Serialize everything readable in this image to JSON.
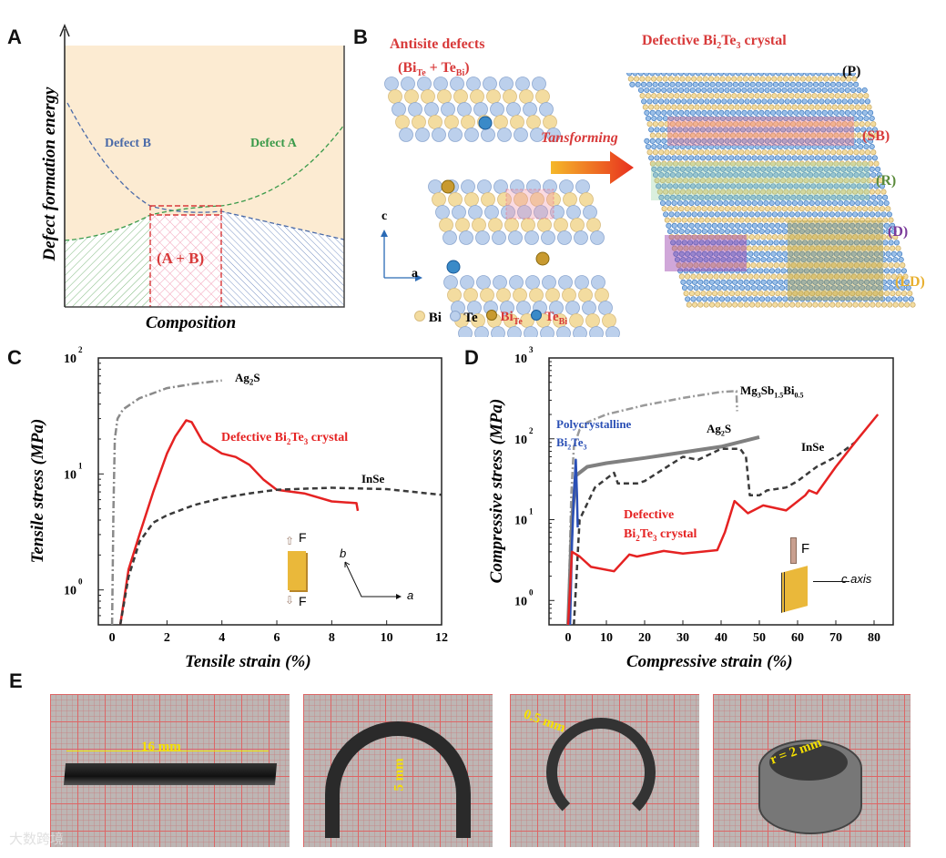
{
  "panels": {
    "a": "A",
    "b": "B",
    "c": "C",
    "d": "D",
    "e": "E"
  },
  "panel_a": {
    "ylabel": "Defect formation energy",
    "xlabel": "Composition",
    "defect_b": "Defect B",
    "defect_a": "Defect A",
    "overlap": "(A + B)"
  },
  "panel_b": {
    "left_title": "Antisite defects",
    "left_formula": {
      "a": "Bi",
      "a_sub": "Te",
      "plus": " + ",
      "b": "Te",
      "b_sub": "Bi"
    },
    "right_title": {
      "pre": "Defective Bi",
      "s1": "2",
      "mid": "Te",
      "s2": "3",
      "post": " crystal"
    },
    "arrow_label": "Tansforming",
    "axis_c": "c",
    "axis_a": "a",
    "regions": [
      "(P)",
      "(SB)",
      "(R)",
      "(D)",
      "(LD)"
    ],
    "legend": [
      {
        "label": "Bi",
        "sub": ""
      },
      {
        "label": "Te",
        "sub": ""
      },
      {
        "label": "Bi",
        "sub": "Te"
      },
      {
        "label": "Te",
        "sub": "Bi"
      }
    ]
  },
  "chart_data": [
    {
      "type": "line",
      "panel": "C",
      "xlabel": "Tensile strain (%)",
      "ylabel": "Tensile stress (MPa)",
      "yscale": "log",
      "xlim": [
        -0.5,
        12
      ],
      "ylim": [
        0.5,
        100
      ],
      "xticks": [
        0,
        2,
        4,
        6,
        8,
        10,
        12
      ],
      "yticks": [
        "10^0",
        "10^1",
        "10^2"
      ],
      "series": [
        {
          "name": "Ag2S",
          "label": "Ag",
          "label_sub": "2",
          "label_post": "S",
          "color": "#8a8a8a",
          "dash": "dashdot",
          "x": [
            0,
            0.05,
            0.1,
            0.2,
            0.4,
            1,
            2,
            3,
            4
          ],
          "y": [
            0.5,
            5,
            20,
            30,
            36,
            45,
            55,
            60,
            64
          ]
        },
        {
          "name": "Defective Bi2Te3 crystal",
          "label": "Defective Bi",
          "label_sub": "2",
          "label_post": "Te3 crystal",
          "color": "#e52222",
          "dash": "solid",
          "x": [
            0.3,
            0.6,
            1,
            1.5,
            2,
            2.3,
            2.7,
            2.9,
            3.3,
            4,
            4.5,
            5,
            5.5,
            6,
            7,
            8,
            8.9,
            8.95
          ],
          "y": [
            0.5,
            1.5,
            3,
            7,
            15,
            21,
            29,
            28,
            19,
            15,
            14,
            12,
            9,
            7.3,
            6.8,
            5.8,
            5.6,
            4.8
          ]
        },
        {
          "name": "InSe",
          "label": "InSe",
          "color": "#3a3a3a",
          "dash": "dashed",
          "x": [
            0.3,
            0.6,
            1,
            1.5,
            2,
            3,
            4,
            5,
            6,
            8,
            10,
            12
          ],
          "y": [
            0.5,
            1.3,
            2.6,
            3.8,
            4.4,
            5.4,
            6.2,
            6.8,
            7.3,
            7.6,
            7.4,
            6.6
          ]
        }
      ],
      "inset": {
        "force": "F",
        "axis_b": "b",
        "axis_a": "a"
      }
    },
    {
      "type": "line",
      "panel": "D",
      "xlabel": "Compressive strain (%)",
      "ylabel": "Compressive stress (MPa)",
      "yscale": "log",
      "xlim": [
        -5,
        85
      ],
      "ylim": [
        0.5,
        1000
      ],
      "xticks": [
        0,
        10,
        20,
        30,
        40,
        50,
        60,
        70,
        80
      ],
      "yticks": [
        "10^0",
        "10^1",
        "10^2",
        "10^3"
      ],
      "series": [
        {
          "name": "Mg3Sb1.5Bi0.5",
          "color": "#9a9a9a",
          "dash": "dashdot",
          "x": [
            0,
            0.8,
            1.5,
            3,
            5,
            10,
            20,
            30,
            40,
            44,
            44.2
          ],
          "y": [
            0.5,
            20,
            80,
            130,
            160,
            200,
            260,
            320,
            380,
            390,
            220
          ]
        },
        {
          "name": "Ag2S",
          "color": "#808080",
          "dash": "solid",
          "x": [
            0,
            1,
            2,
            5,
            10,
            20,
            30,
            40,
            50
          ],
          "y": [
            0.5,
            10,
            35,
            45,
            50,
            58,
            68,
            80,
            105
          ]
        },
        {
          "name": "InSe",
          "color": "#3a3a3a",
          "dash": "dashed",
          "x": [
            1.5,
            3,
            7,
            12,
            13,
            18,
            20,
            30,
            34,
            40,
            45,
            46.5,
            47.5,
            50,
            52,
            57,
            60,
            65,
            70,
            75
          ],
          "y": [
            0.5,
            10,
            25,
            38,
            28,
            28,
            30,
            60,
            55,
            75,
            75,
            60,
            20,
            20,
            23,
            25,
            30,
            45,
            60,
            90
          ]
        },
        {
          "name": "Polycrystalline Bi2Te3",
          "color": "#2a4fb5",
          "dash": "solid",
          "x": [
            0.5,
            1,
            1.5,
            2,
            2.3,
            2.5
          ],
          "y": [
            0.5,
            5,
            20,
            55,
            20,
            8
          ]
        },
        {
          "name": "Defective Bi2Te3 crystal",
          "color": "#e52222",
          "dash": "solid",
          "x": [
            0,
            1,
            3,
            6,
            12,
            16,
            18,
            25,
            30,
            39,
            41,
            43.5,
            47,
            51,
            57,
            62,
            63,
            65,
            70,
            75,
            81
          ],
          "y": [
            0.5,
            4,
            3.5,
            2.6,
            2.3,
            3.7,
            3.5,
            4.1,
            3.8,
            4.2,
            7,
            17,
            12,
            15,
            13,
            20,
            23,
            21,
            45,
            90,
            200
          ]
        }
      ],
      "labels": {
        "mg": "Mg",
        "mg_s": "3",
        "sb": "Sb",
        "sb_s": "1.5",
        "bi": "Bi",
        "bi_s": "0.5",
        "poly1": "Polycrystalline",
        "poly2a": "Bi",
        "poly2s": "2",
        "poly2b": "Te",
        "poly2s2": "3",
        "ag": "Ag",
        "ag_s": "2",
        "ag_post": "S",
        "inse": "InSe",
        "def1": "Defective",
        "def2a": "Bi",
        "def2s": "2",
        "def2b": "Te",
        "def2s2": "3",
        "def2post": " crystal"
      },
      "inset": {
        "force": "F",
        "axis": "c axis"
      }
    }
  ],
  "panel_e": {
    "labels": [
      "16 mm",
      "5 mm",
      "0.5 mm",
      "r = 2 mm"
    ],
    "watermark": "大数跨境"
  }
}
